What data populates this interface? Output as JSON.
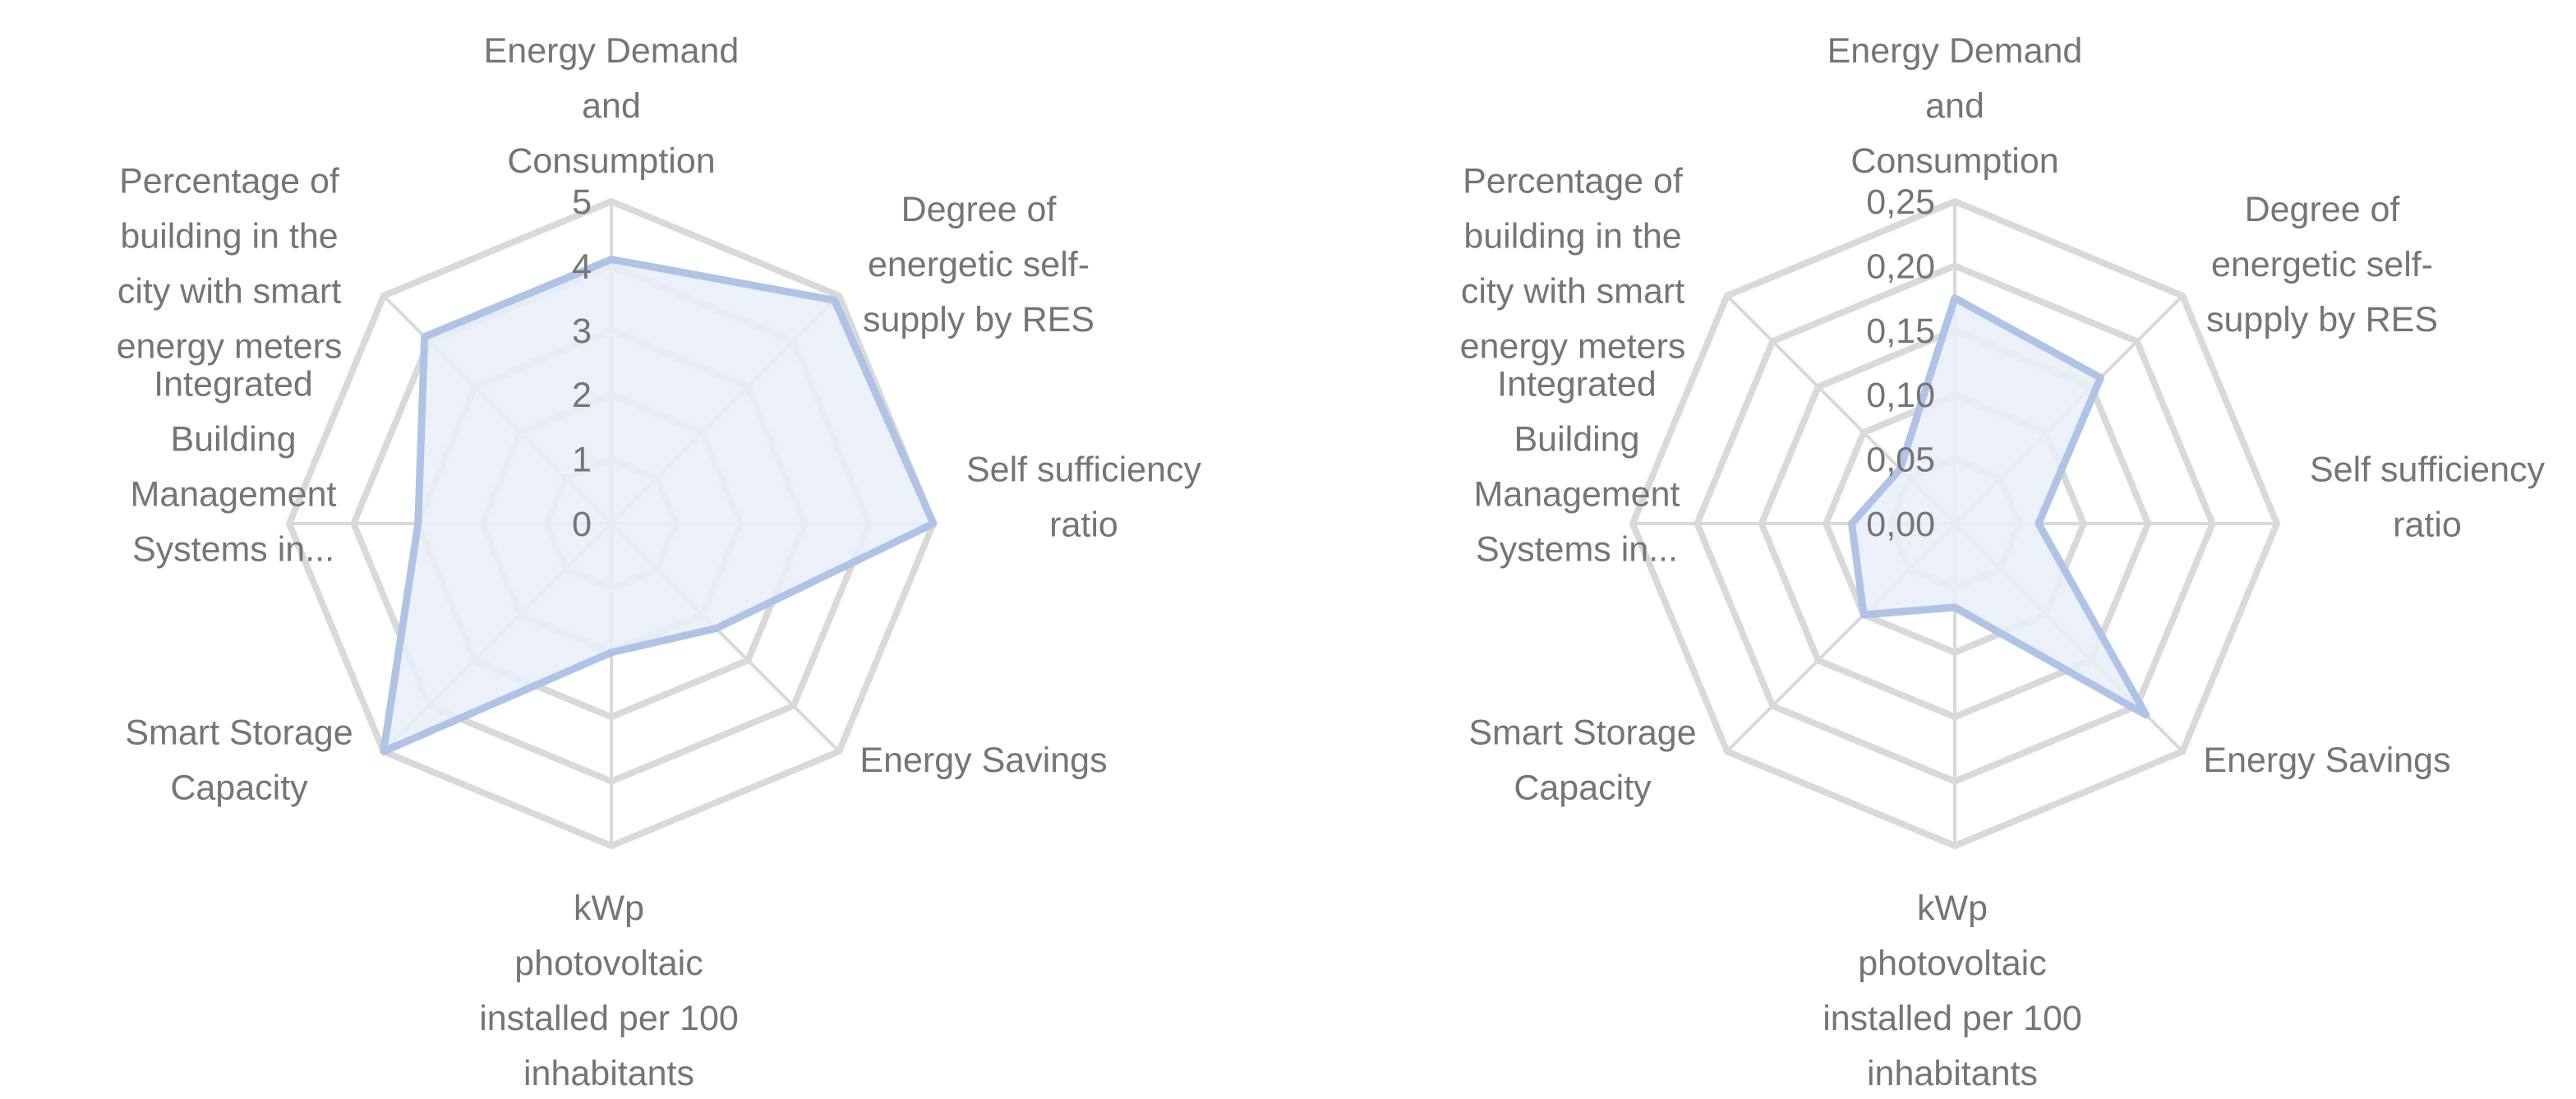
{
  "chart_data": [
    {
      "type": "radar",
      "categories": [
        [
          "Energy Demand",
          "and",
          "Consumption"
        ],
        [
          "Degree of",
          "energetic self-",
          "supply by RES"
        ],
        [
          "Self sufficiency",
          "ratio"
        ],
        [
          "Energy Savings"
        ],
        [
          "kWp",
          "photovoltaic",
          "installed per 100",
          "inhabitants"
        ],
        [
          "Smart Storage",
          "Capacity"
        ],
        [
          "Integrated",
          "Building",
          "Management",
          "Systems in..."
        ],
        [
          "Percentage of",
          "building in the",
          "city with smart",
          "energy meters"
        ]
      ],
      "values": [
        4.1,
        4.9,
        5.0,
        2.3,
        2.0,
        5.0,
        3.0,
        4.1
      ],
      "rlim": [
        0,
        5
      ],
      "ticks": [
        "0",
        "1",
        "2",
        "3",
        "4",
        "5"
      ],
      "series_color": "#aec3e6",
      "fill_color": "#e8edf8",
      "grid_color": "#d9d9d9"
    },
    {
      "type": "radar",
      "categories": [
        [
          "Energy Demand",
          "and",
          "Consumption"
        ],
        [
          "Degree of",
          "energetic self-",
          "supply by RES"
        ],
        [
          "Self sufficiency",
          "ratio"
        ],
        [
          "Energy Savings"
        ],
        [
          "kWp",
          "photovoltaic",
          "installed per 100",
          "inhabitants"
        ],
        [
          "Smart Storage",
          "Capacity"
        ],
        [
          "Integrated",
          "Building",
          "Management",
          "Systems in..."
        ],
        [
          "Percentage of",
          "building in the",
          "city with smart",
          "energy meters"
        ]
      ],
      "values": [
        0.175,
        0.16,
        0.065,
        0.21,
        0.065,
        0.1,
        0.08,
        0.06
      ],
      "rlim": [
        0,
        0.25
      ],
      "ticks": [
        "0,00",
        "0,05",
        "0,10",
        "0,15",
        "0,20",
        "0,25"
      ],
      "series_color": "#aec3e6",
      "fill_color": "#e8edf8",
      "grid_color": "#d9d9d9"
    }
  ]
}
